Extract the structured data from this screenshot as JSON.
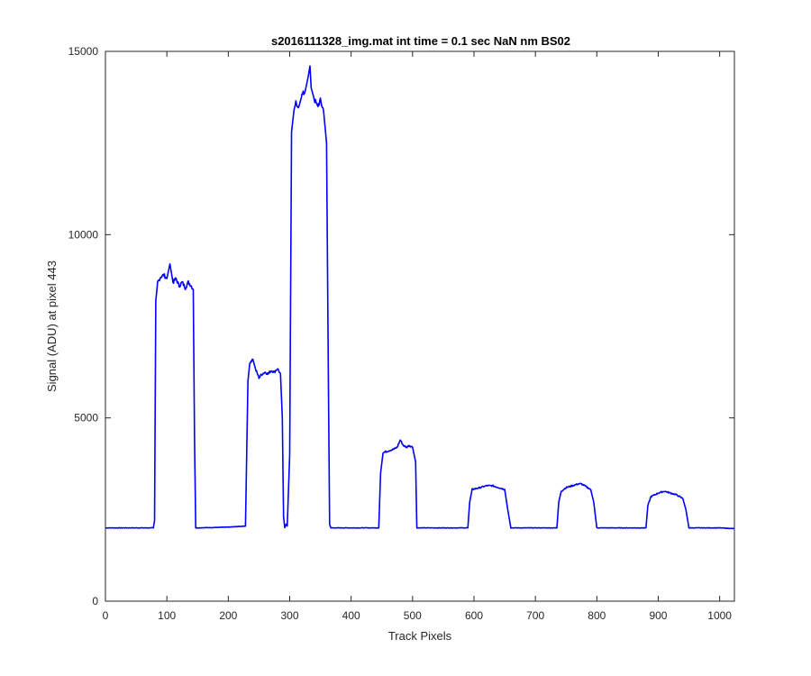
{
  "chart_data": {
    "type": "line",
    "title": "s2016111328_img.mat int time = 0.1 sec  NaN nm BS02",
    "xlabel": "Track Pixels",
    "ylabel": "Signal (ADU) at pixel 443",
    "xlim": [
      0,
      1024
    ],
    "ylim": [
      0,
      15000
    ],
    "xticks": [
      0,
      100,
      200,
      300,
      400,
      500,
      600,
      700,
      800,
      900,
      1000
    ],
    "xtick_labels": [
      "0",
      "100",
      "200",
      "300",
      "400",
      "500",
      "600",
      "700",
      "800",
      "900",
      "1000"
    ],
    "yticks": [
      0,
      5000,
      10000,
      15000
    ],
    "ytick_labels": [
      "0",
      "5000",
      "10000",
      "15000"
    ],
    "grid": false,
    "line_color": "#0000ff",
    "series": [
      {
        "x": [
          0,
          78,
          80,
          82,
          85,
          90,
          95,
          100,
          105,
          110,
          115,
          120,
          125,
          130,
          135,
          140,
          143,
          145,
          147,
          150,
          200,
          228,
          232,
          235,
          240,
          245,
          250,
          255,
          260,
          265,
          270,
          275,
          280,
          285,
          288,
          290,
          292,
          294,
          296,
          300,
          303,
          305,
          307,
          310,
          315,
          320,
          325,
          330,
          333,
          335,
          340,
          345,
          350,
          355,
          360,
          363,
          365,
          367,
          370,
          400,
          445,
          448,
          452,
          460,
          470,
          475,
          480,
          485,
          490,
          495,
          500,
          505,
          507,
          510,
          550,
          590,
          593,
          597,
          610,
          620,
          630,
          640,
          650,
          655,
          660,
          700,
          735,
          738,
          742,
          750,
          760,
          770,
          775,
          780,
          790,
          795,
          800,
          850,
          880,
          883,
          888,
          900,
          910,
          920,
          930,
          940,
          945,
          950,
          1000,
          1024
        ],
        "y": [
          2000,
          2000,
          2200,
          8200,
          8700,
          8850,
          8900,
          8800,
          9200,
          8700,
          8800,
          8600,
          8700,
          8550,
          8700,
          8600,
          8500,
          4500,
          2000,
          2000,
          2020,
          2050,
          6000,
          6500,
          6600,
          6300,
          6100,
          6200,
          6250,
          6200,
          6300,
          6250,
          6350,
          6200,
          5000,
          2300,
          2000,
          2100,
          2050,
          4000,
          12800,
          13100,
          13400,
          13600,
          13500,
          13800,
          13900,
          14300,
          14600,
          14000,
          13700,
          13500,
          13650,
          13400,
          12500,
          6000,
          2100,
          2000,
          2000,
          2000,
          2000,
          3500,
          4050,
          4100,
          4150,
          4200,
          4400,
          4250,
          4200,
          4250,
          4200,
          3800,
          2000,
          2000,
          2000,
          2000,
          2700,
          3050,
          3100,
          3150,
          3150,
          3100,
          3050,
          2500,
          2000,
          2000,
          2000,
          2700,
          3000,
          3100,
          3150,
          3200,
          3200,
          3150,
          3050,
          2700,
          2000,
          2000,
          2000,
          2600,
          2850,
          2950,
          3000,
          2950,
          2900,
          2800,
          2500,
          2000,
          2000,
          1980
        ]
      }
    ]
  }
}
